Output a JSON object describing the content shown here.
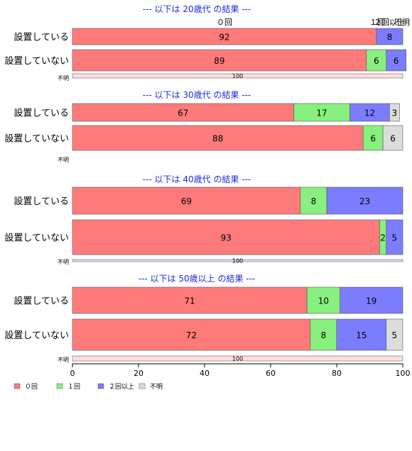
{
  "chart_data": {
    "type": "bar",
    "orientation": "horizontal",
    "stacked": true,
    "xlim": [
      0,
      100
    ],
    "xticks": [
      0,
      20,
      40,
      60,
      80,
      100
    ],
    "grid": false,
    "legend_position": "bottom-left",
    "series_names": [
      "０回",
      "１回",
      "２回以上",
      "不明"
    ],
    "colors": [
      "#ff7b7b",
      "#88f07f",
      "#7c7cff",
      "#dcdcdc"
    ],
    "top_headers": [
      "０回",
      "１回",
      "２回以上",
      "不明"
    ],
    "panels": [
      {
        "title": "--- 以下は 20歳代 の結果 ---",
        "rows": [
          {
            "label": "設置している",
            "values": [
              92,
              0,
              8,
              0
            ]
          },
          {
            "label": "設置していない",
            "values": [
              89,
              6,
              6,
              0
            ]
          }
        ],
        "unknown": {
          "label": "不明",
          "values": [
            100,
            0,
            0,
            0
          ],
          "value_label": "100"
        }
      },
      {
        "title": "--- 以下は 30歳代 の結果 ---",
        "rows": [
          {
            "label": "設置している",
            "values": [
              67,
              17,
              12,
              3
            ]
          },
          {
            "label": "設置していない",
            "values": [
              88,
              6,
              0,
              6
            ]
          }
        ],
        "unknown": {
          "label": "不明",
          "values": [
            0,
            0,
            0,
            0
          ],
          "value_label": ""
        }
      },
      {
        "title": "--- 以下は 40歳代 の結果 ---",
        "rows": [
          {
            "label": "設置している",
            "values": [
              69,
              8,
              23,
              0
            ]
          },
          {
            "label": "設置していない",
            "values": [
              93,
              2,
              5,
              0
            ]
          }
        ],
        "unknown": {
          "label": "不明",
          "values": [
            0,
            0,
            100,
            0
          ],
          "value_label": "100"
        }
      },
      {
        "title": "--- 以下は 50歳以上 の結果 ---",
        "rows": [
          {
            "label": "設置している",
            "values": [
              71,
              10,
              19,
              0
            ]
          },
          {
            "label": "設置していない",
            "values": [
              72,
              8,
              15,
              5
            ]
          }
        ],
        "unknown": {
          "label": "不明",
          "values": [
            100,
            0,
            0,
            0
          ],
          "value_label": "100"
        }
      }
    ]
  }
}
